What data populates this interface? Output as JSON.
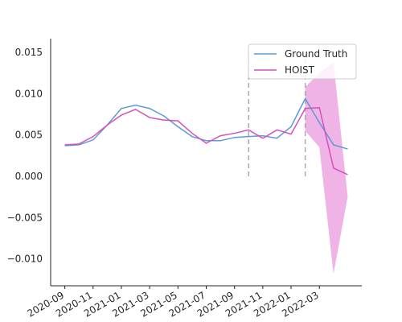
{
  "chart_data": {
    "type": "line",
    "x": [
      "2020-09",
      "2020-10",
      "2020-11",
      "2020-12",
      "2021-01",
      "2021-02",
      "2021-03",
      "2021-04",
      "2021-05",
      "2021-06",
      "2021-07",
      "2021-08",
      "2021-09",
      "2021-10",
      "2021-11",
      "2021-12",
      "2022-01",
      "2022-02",
      "2022-03",
      "2022-04",
      "2022-05"
    ],
    "series": [
      {
        "name": "Ground Truth",
        "color": "#5b9bd5",
        "values": [
          0.0037,
          0.0038,
          0.0044,
          0.0062,
          0.0082,
          0.0086,
          0.0082,
          0.0073,
          0.006,
          0.0048,
          0.0043,
          0.0043,
          0.0047,
          0.0048,
          0.0049,
          0.0046,
          0.006,
          0.0094,
          0.0065,
          0.0038,
          0.0033
        ]
      },
      {
        "name": "HOIST",
        "color": "#d64fbf",
        "values": [
          0.0038,
          0.0039,
          0.0048,
          0.0062,
          0.0074,
          0.0081,
          0.0071,
          0.0068,
          0.0067,
          0.0052,
          0.004,
          0.0049,
          0.0052,
          0.0056,
          0.0046,
          0.0056,
          0.0051,
          0.0082,
          0.0083,
          0.001,
          0.0002
        ]
      }
    ],
    "band": {
      "color": "#f0b3e6",
      "lower": [
        null,
        null,
        null,
        null,
        null,
        null,
        null,
        null,
        null,
        null,
        null,
        null,
        null,
        null,
        null,
        null,
        null,
        0.0055,
        0.0035,
        -0.0118,
        -0.0025
      ],
      "upper": [
        null,
        null,
        null,
        null,
        null,
        null,
        null,
        null,
        null,
        null,
        null,
        null,
        null,
        null,
        null,
        null,
        null,
        0.0108,
        0.0125,
        0.0138,
        -0.0025
      ]
    },
    "vlines": [
      {
        "x": "2021-10",
        "ymin": 0,
        "ymax": 0.015
      },
      {
        "x": "2022-02",
        "ymin": 0,
        "ymax": 0.015
      }
    ],
    "xlim": [
      "2020-08",
      "2022-06"
    ],
    "xticks": [
      "2020-09",
      "2020-11",
      "2021-01",
      "2021-03",
      "2021-05",
      "2021-07",
      "2021-09",
      "2021-11",
      "2022-01",
      "2022-03"
    ],
    "ylim": [
      -0.01325,
      0.01665
    ],
    "yticks": [
      {
        "value": -0.01,
        "label": "−0.010"
      },
      {
        "value": -0.005,
        "label": "−0.005"
      },
      {
        "value": 0,
        "label": "0.000"
      },
      {
        "value": 0.005,
        "label": "0.005"
      },
      {
        "value": 0.01,
        "label": "0.010"
      },
      {
        "value": 0.015,
        "label": "0.015"
      }
    ],
    "legend": "upper right"
  }
}
